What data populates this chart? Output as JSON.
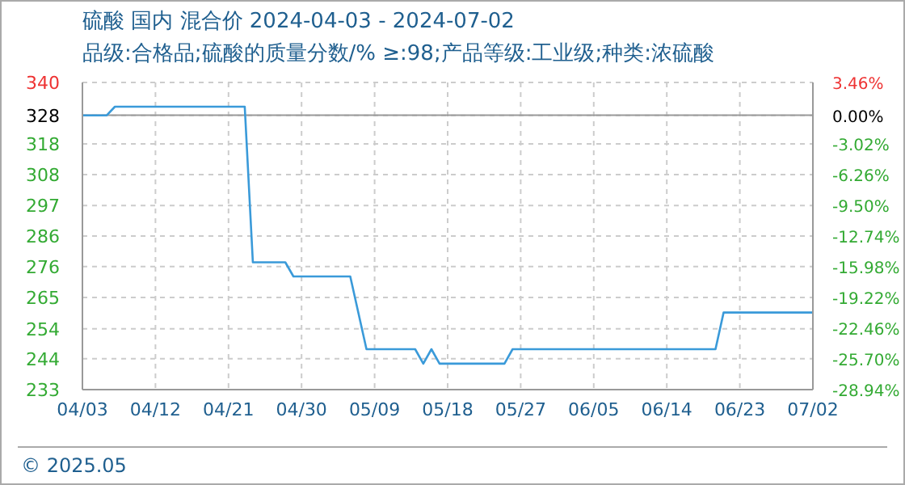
{
  "chart_data": {
    "type": "line",
    "title": "硫酸 国内 混合价 2024-04-03 - 2024-07-02",
    "subtitle": "品级:合格品;硫酸的质量分数/% ≥:98;产品等级:工业级;种类:浓硫酸",
    "annotations": [
      "© 2025.05"
    ],
    "x": [
      "2024-04-03",
      "2024-04-06",
      "2024-04-07",
      "2024-04-23",
      "2024-04-24",
      "2024-04-28",
      "2024-04-29",
      "2024-05-06",
      "2024-05-08",
      "2024-05-14",
      "2024-05-15",
      "2024-05-16",
      "2024-05-17",
      "2024-05-25",
      "2024-05-26",
      "2024-06-20",
      "2024-06-21",
      "2024-07-02"
    ],
    "series": [
      {
        "color": "#3a9ad9",
        "values": [
          328.3,
          328.3,
          331.3,
          331.3,
          277.4,
          277.4,
          272.5,
          272.5,
          247.3,
          247.3,
          242.3,
          247.3,
          242.3,
          242.3,
          247.3,
          247.3,
          260.0,
          260.0
        ]
      }
    ],
    "xlim": [
      "2024-04-03",
      "2024-07-02"
    ],
    "xticks": [
      {
        "value": "2024-04-03",
        "label": "04/03"
      },
      {
        "value": "2024-04-12",
        "label": "04/12"
      },
      {
        "value": "2024-04-21",
        "label": "04/21"
      },
      {
        "value": "2024-04-30",
        "label": "04/30"
      },
      {
        "value": "2024-05-09",
        "label": "05/09"
      },
      {
        "value": "2024-05-18",
        "label": "05/18"
      },
      {
        "value": "2024-05-27",
        "label": "05/27"
      },
      {
        "value": "2024-06-05",
        "label": "06/05"
      },
      {
        "value": "2024-06-14",
        "label": "06/14"
      },
      {
        "value": "2024-06-23",
        "label": "06/23"
      },
      {
        "value": "2024-07-02",
        "label": "07/02"
      }
    ],
    "ylim": [
      233.3,
      339.7
    ],
    "yticks": [
      {
        "value": 339.7,
        "label": "340"
      },
      {
        "value": 328.3,
        "label": "328"
      },
      {
        "value": 318.4,
        "label": "318"
      },
      {
        "value": 307.8,
        "label": "308"
      },
      {
        "value": 297.1,
        "label": "297"
      },
      {
        "value": 286.5,
        "label": "286"
      },
      {
        "value": 275.9,
        "label": "276"
      },
      {
        "value": 265.2,
        "label": "265"
      },
      {
        "value": 254.4,
        "label": "254"
      },
      {
        "value": 244.0,
        "label": "244"
      },
      {
        "value": 233.3,
        "label": "233"
      }
    ],
    "y2lim": [
      -28.94,
      3.46
    ],
    "y2ticks": [
      {
        "value": 3.46,
        "label": "3.46%"
      },
      {
        "value": 0,
        "label": "0.00%"
      },
      {
        "value": -3.02,
        "label": "-3.02%"
      },
      {
        "value": -6.26,
        "label": "-6.26%"
      },
      {
        "value": -9.5,
        "label": "-9.50%"
      },
      {
        "value": -12.74,
        "label": "-12.74%"
      },
      {
        "value": -15.98,
        "label": "-15.98%"
      },
      {
        "value": -19.22,
        "label": "-19.22%"
      },
      {
        "value": -22.46,
        "label": "-22.46%"
      },
      {
        "value": -25.7,
        "label": "-25.70%"
      },
      {
        "value": -28.94,
        "label": "-28.94%"
      }
    ],
    "ref_lines": [
      {
        "axis": "y2",
        "value": 0,
        "color": "#999999",
        "line_style": "solid"
      }
    ],
    "grid": true,
    "marker": "none",
    "line_style": "solid"
  }
}
